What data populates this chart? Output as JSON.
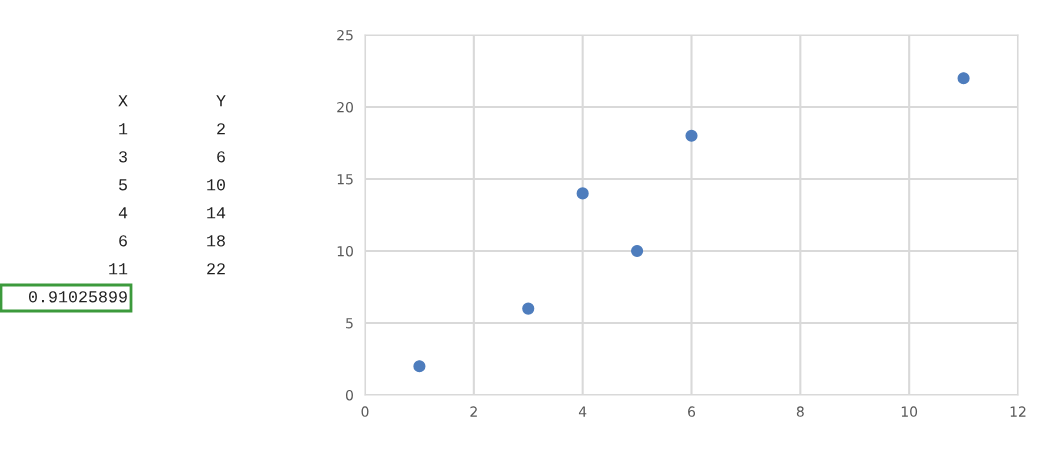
{
  "chart_data": {
    "type": "scatter",
    "x": [
      1,
      3,
      5,
      4,
      6,
      11
    ],
    "values": [
      2,
      6,
      10,
      14,
      18,
      22
    ],
    "color": "#4e7dbd",
    "xlim": [
      0,
      12
    ],
    "xticks": [
      0,
      2,
      4,
      6,
      8,
      10,
      12
    ],
    "ylim": [
      0,
      25
    ],
    "yticks": [
      0,
      5,
      10,
      15,
      20,
      25
    ],
    "grid": true,
    "marker": "circle",
    "annotations": [
      "X",
      "Y",
      "1",
      "2",
      "3",
      "6",
      "5",
      "10",
      "4",
      "14",
      "6",
      "18",
      "11",
      "22",
      "0.91025899"
    ]
  }
}
